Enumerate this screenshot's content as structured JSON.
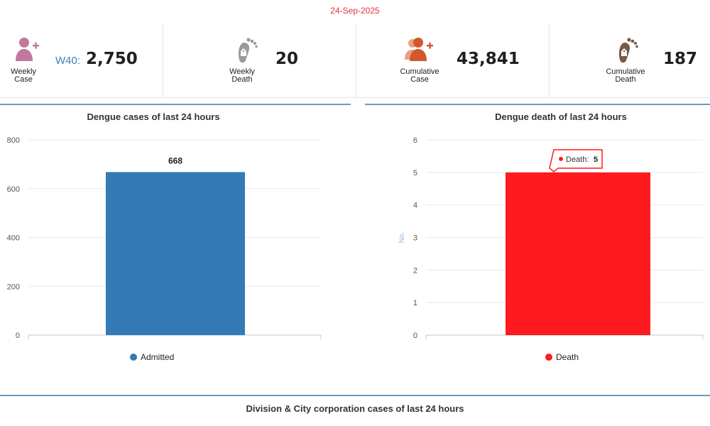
{
  "date": "24-Sep-2025",
  "stats": {
    "weekly_case": {
      "label_line1": "Weekly",
      "label_line2": "Case",
      "week": "W40:",
      "value": "2,750"
    },
    "weekly_death": {
      "label_line1": "Weekly",
      "label_line2": "Death",
      "value": "20"
    },
    "cumulative_case": {
      "label_line1": "Cumulative",
      "label_line2": "Case",
      "value": "43,841"
    },
    "cumulative_death": {
      "label_line1": "Cumulative",
      "label_line2": "Death",
      "value": "187"
    }
  },
  "icons": {
    "weekly_case": "user-plus-icon",
    "weekly_death": "footprint-tag-icon",
    "cumulative_case": "users-plus-icon",
    "cumulative_death": "footprint-tag-icon"
  },
  "colors": {
    "date": "#e8313b",
    "admitted_bar": "#337ab7",
    "death_bar": "#ff1a1f",
    "weekly_case_icon": "#c2789a",
    "weekly_death_icon": "#9a9a9a",
    "cumulative_case_icon": "#d2572a",
    "cumulative_death_icon": "#7a5a46"
  },
  "chart_data": [
    {
      "type": "bar",
      "title": "Dengue cases of last 24 hours",
      "categories": [
        ""
      ],
      "series": [
        {
          "name": "Admitted",
          "values": [
            668
          ]
        }
      ],
      "data_labels": [
        "668"
      ],
      "yticks": [
        0,
        200,
        400,
        600,
        800
      ],
      "ylim": [
        0,
        800
      ],
      "ylabel": "",
      "grid": true,
      "legend": "bottom-center"
    },
    {
      "type": "bar",
      "title": "Dengue death of last 24 hours",
      "categories": [
        ""
      ],
      "series": [
        {
          "name": "Death",
          "values": [
            5
          ]
        }
      ],
      "yticks": [
        0,
        1,
        2,
        3,
        4,
        5,
        6
      ],
      "ylim": [
        0,
        6
      ],
      "ylabel": "No.",
      "grid": true,
      "legend": "bottom-center",
      "tooltip": {
        "series": "Death:",
        "value": "5"
      }
    }
  ],
  "bottom_title": "Division & City corporation cases of last 24 hours"
}
